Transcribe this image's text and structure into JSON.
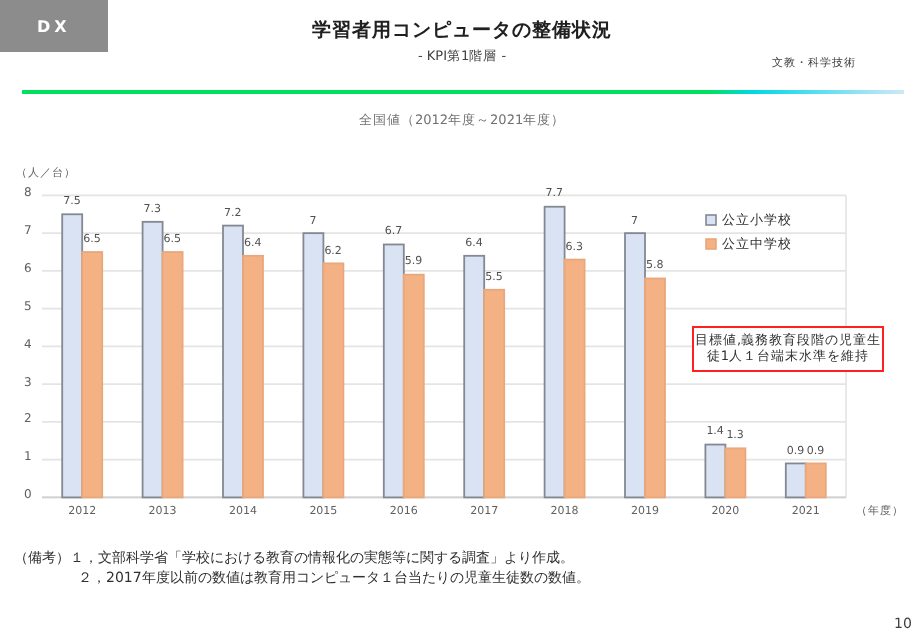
{
  "chart_data": {
    "type": "bar",
    "title": "学習者用コンピュータの整備状況",
    "subtitle": "全国値（2012年度～2021年度）",
    "ylabel": "（人／台）",
    "xlabel": "（年度）",
    "categories": [
      "2012",
      "2013",
      "2014",
      "2015",
      "2016",
      "2017",
      "2018",
      "2019",
      "2020",
      "2021"
    ],
    "series": [
      {
        "name": "公立小学校",
        "color": "#dae3f3",
        "values": [
          7.5,
          7.3,
          7.2,
          7,
          6.7,
          6.4,
          7.7,
          7,
          1.4,
          0.9
        ]
      },
      {
        "name": "公立中学校",
        "color": "#f4b183",
        "values": [
          6.5,
          6.5,
          6.4,
          6.2,
          5.9,
          5.5,
          6.3,
          5.8,
          1.3,
          0.9
        ]
      }
    ],
    "ylim": [
      0,
      8
    ],
    "yticks": [
      0,
      1,
      2,
      3,
      4,
      5,
      6,
      7,
      8
    ],
    "grid": "y",
    "legend": "top right",
    "data_labels": true,
    "annotations": [
      "DX",
      "- KPI第1階層 -",
      "文教・科学技術",
      "目標値,義務教育段階の児童生徒1人１台端末水準を維持",
      "（備考）１，文部科学省「学校における教育の情報化の実態等に関する調査」より作成。",
      "２，2017年度以前の数値は教育用コンピュータ１台当たりの児童生徒数の数値。",
      "10"
    ]
  }
}
